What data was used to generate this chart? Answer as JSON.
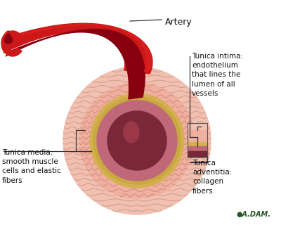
{
  "bg_color": "#ffffff",
  "labels": {
    "artery": "Artery",
    "tunica_intima": "Tunica intima:\nendothelium\nthat lines the\nlumen of all\nvessels",
    "tunica_media": "Tunica media:\nsmooth muscle\ncells and elastic\nfibers",
    "tunica_adventitia": "Tunica\nadventitia:\ncollagen\nfibers"
  },
  "colors": {
    "adventitia_outer": "#f0c0b0",
    "adventitia_lines": "#d09080",
    "media_base": "#f0b0a0",
    "media_lines": "#d08878",
    "elastic_yellow": "#d4b050",
    "elastic_inner": "#c8a840",
    "intima": "#c06878",
    "lumen": "#7a2838",
    "lumen_highlight": "#9a3848",
    "artery_bright": "#dd2020",
    "artery_mid": "#cc1818",
    "artery_dark": "#991010",
    "artery_inner": "#880010",
    "line_color": "#333333"
  }
}
